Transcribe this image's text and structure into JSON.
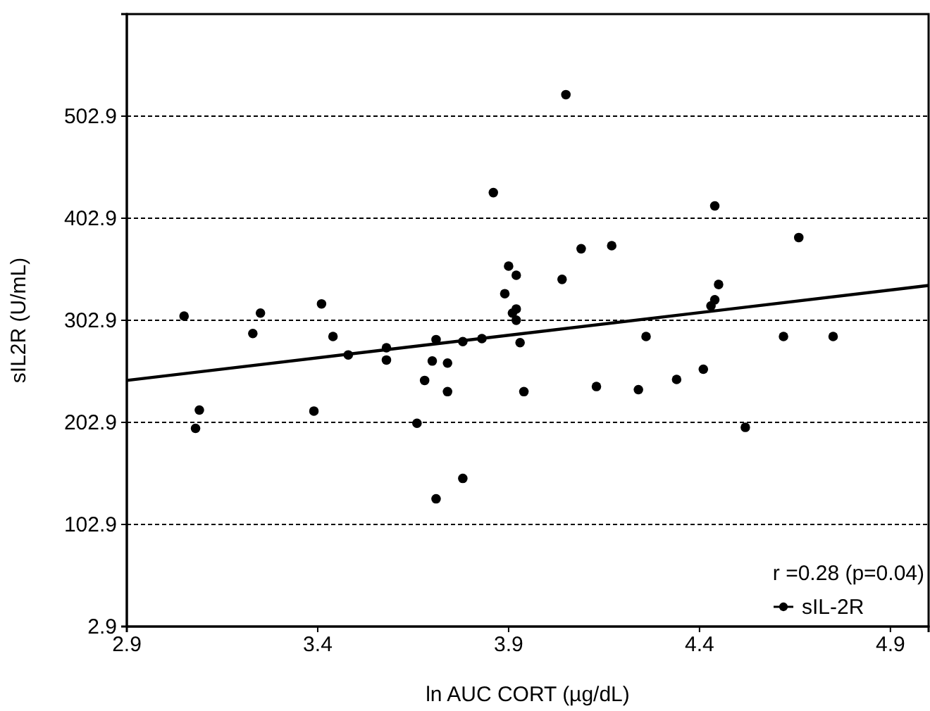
{
  "chart_data": {
    "type": "scatter",
    "xlabel": "ln AUC CORT (µg/dL)",
    "ylabel": "sIL2R (U/mL)",
    "xlim": [
      2.9,
      5.0
    ],
    "xticks": [
      2.9,
      3.4,
      3.9,
      4.4,
      4.9
    ],
    "ylim": [
      2.9,
      602.9
    ],
    "yticks": [
      2.9,
      102.9,
      202.9,
      302.9,
      402.9,
      502.9
    ],
    "grid": "y",
    "legend": "bottom right",
    "annotations": [
      "r =0.28 (p=0.04)"
    ],
    "series": [
      {
        "name": "sIL-2R",
        "marker": "circle",
        "color": "#000000",
        "x": [
          3.05,
          3.09,
          3.08,
          3.23,
          3.25,
          3.41,
          3.44,
          3.39,
          3.48,
          3.58,
          3.58,
          3.71,
          3.7,
          3.74,
          3.68,
          3.74,
          3.66,
          3.71,
          3.78,
          3.78,
          3.83,
          3.86,
          3.9,
          3.92,
          3.89,
          3.92,
          3.91,
          3.92,
          3.93,
          3.94,
          4.05,
          4.44,
          4.66,
          4.09,
          4.17,
          4.04,
          4.45,
          4.44,
          4.43,
          4.26,
          4.62,
          4.75,
          4.13,
          4.24,
          4.34,
          4.41,
          4.52
        ],
        "values": [
          307,
          215,
          197,
          290,
          310,
          319,
          287,
          214,
          269,
          276,
          264,
          284,
          263,
          261,
          244,
          233,
          202,
          128,
          148,
          282,
          285,
          428,
          356,
          347,
          329,
          314,
          310,
          303,
          281,
          233,
          524,
          415,
          384,
          373,
          376,
          343,
          338,
          323,
          317,
          287,
          287,
          287,
          238,
          235,
          245,
          255,
          198
        ]
      },
      {
        "type": "line",
        "marker": "none",
        "color": "#000000",
        "x": [
          2.9,
          5.0
        ],
        "values": [
          244,
          337
        ]
      }
    ]
  }
}
